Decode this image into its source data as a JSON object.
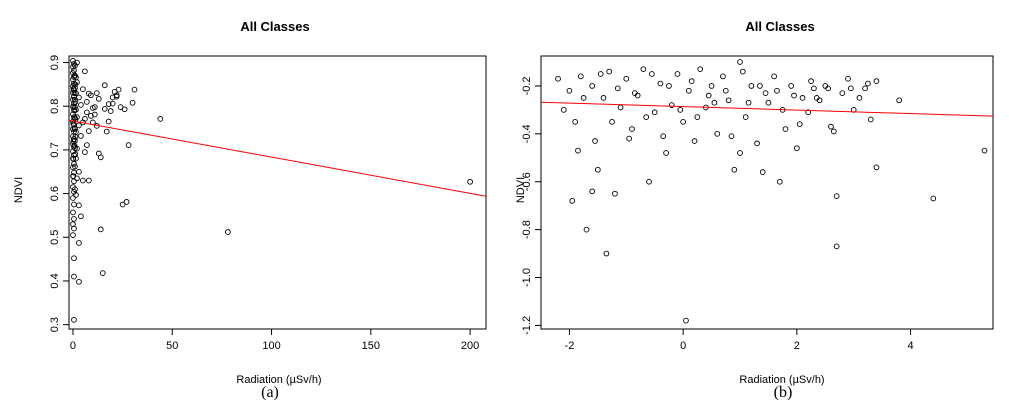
{
  "chart_data": [
    {
      "type": "scatter",
      "title": "All Classes",
      "xlabel": "Radiation (µSv/h)",
      "ylabel": "NDVI",
      "caption": "(a)",
      "xlim": [
        -2,
        208
      ],
      "ylim": [
        0.29,
        0.915
      ],
      "xticks": [
        0,
        50,
        100,
        150,
        200
      ],
      "xtick_labels": [
        "0",
        "50",
        "100",
        "150",
        "200"
      ],
      "yticks": [
        0.3,
        0.4,
        0.5,
        0.6,
        0.7,
        0.8,
        0.9
      ],
      "ytick_labels": [
        "0.3",
        "0.4",
        "0.5",
        "0.6",
        "0.7",
        "0.8",
        "0.9"
      ],
      "grid": false,
      "point_color": "#000000",
      "line_color": "#ff0000",
      "regression_line": {
        "x": [
          -2,
          208
        ],
        "y": [
          0.768,
          0.594
        ]
      },
      "points": [
        [
          200,
          0.627
        ],
        [
          78,
          0.512
        ],
        [
          44,
          0.771
        ],
        [
          31,
          0.838
        ],
        [
          30,
          0.808
        ],
        [
          28,
          0.711
        ],
        [
          27,
          0.581
        ],
        [
          26,
          0.793
        ],
        [
          25,
          0.575
        ],
        [
          24,
          0.798
        ],
        [
          23,
          0.838
        ],
        [
          22,
          0.825
        ],
        [
          22,
          0.822
        ],
        [
          21,
          0.833
        ],
        [
          20,
          0.82
        ],
        [
          19,
          0.789
        ],
        [
          18,
          0.765
        ],
        [
          18,
          0.805
        ],
        [
          17,
          0.742
        ],
        [
          16,
          0.794
        ],
        [
          16,
          0.848
        ],
        [
          15,
          0.418
        ],
        [
          14,
          0.518
        ],
        [
          14,
          0.683
        ],
        [
          13,
          0.817
        ],
        [
          13,
          0.692
        ],
        [
          12,
          0.83
        ],
        [
          11,
          0.781
        ],
        [
          10,
          0.763
        ],
        [
          10,
          0.796
        ],
        [
          9,
          0.825
        ],
        [
          8,
          0.829
        ],
        [
          8,
          0.743
        ],
        [
          7,
          0.711
        ],
        [
          7,
          0.786
        ],
        [
          6,
          0.771
        ],
        [
          6,
          0.88
        ],
        [
          5,
          0.63
        ],
        [
          5,
          0.763
        ],
        [
          5,
          0.839
        ],
        [
          4,
          0.548
        ],
        [
          4,
          0.803
        ],
        [
          4,
          0.732
        ],
        [
          3,
          0.398
        ],
        [
          3,
          0.487
        ],
        [
          3,
          0.573
        ],
        [
          3,
          0.65
        ],
        [
          3,
          0.756
        ],
        [
          3,
          0.82
        ],
        [
          2,
          0.635
        ],
        [
          2,
          0.703
        ],
        [
          2,
          0.775
        ],
        [
          2,
          0.855
        ],
        [
          2,
          0.9
        ],
        [
          1.5,
          0.597
        ],
        [
          1.5,
          0.68
        ],
        [
          1.5,
          0.741
        ],
        [
          1.5,
          0.792
        ],
        [
          1.5,
          0.83
        ],
        [
          1.5,
          0.866
        ],
        [
          1,
          0.61
        ],
        [
          1,
          0.662
        ],
        [
          1,
          0.704
        ],
        [
          1,
          0.721
        ],
        [
          1,
          0.748
        ],
        [
          1,
          0.773
        ],
        [
          1,
          0.798
        ],
        [
          1,
          0.815
        ],
        [
          1,
          0.842
        ],
        [
          1,
          0.87
        ],
        [
          1,
          0.893
        ],
        [
          0.5,
          0.311
        ],
        [
          0.5,
          0.452
        ],
        [
          0.5,
          0.41
        ],
        [
          0.5,
          0.52
        ],
        [
          0.5,
          0.542
        ],
        [
          0.5,
          0.575
        ],
        [
          0.5,
          0.604
        ],
        [
          0.5,
          0.628
        ],
        [
          0.5,
          0.648
        ],
        [
          0.5,
          0.668
        ],
        [
          0.5,
          0.688
        ],
        [
          0.5,
          0.707
        ],
        [
          0.5,
          0.725
        ],
        [
          0.5,
          0.742
        ],
        [
          0.5,
          0.758
        ],
        [
          0.5,
          0.775
        ],
        [
          0.5,
          0.791
        ],
        [
          0.5,
          0.806
        ],
        [
          0.5,
          0.822
        ],
        [
          0.5,
          0.837
        ],
        [
          0.5,
          0.852
        ],
        [
          0.5,
          0.867
        ],
        [
          0.5,
          0.882
        ],
        [
          0.5,
          0.897
        ],
        [
          0,
          0.505
        ],
        [
          0,
          0.53
        ],
        [
          0,
          0.557
        ],
        [
          0,
          0.59
        ],
        [
          0,
          0.615
        ],
        [
          0,
          0.64
        ],
        [
          0,
          0.66
        ],
        [
          0,
          0.68
        ],
        [
          0,
          0.697
        ],
        [
          0,
          0.714
        ],
        [
          0,
          0.731
        ],
        [
          0,
          0.748
        ],
        [
          0,
          0.765
        ],
        [
          0,
          0.782
        ],
        [
          0,
          0.799
        ],
        [
          0,
          0.815
        ],
        [
          0,
          0.831
        ],
        [
          0,
          0.846
        ],
        [
          0,
          0.861
        ],
        [
          0,
          0.876
        ],
        [
          0,
          0.89
        ],
        [
          0,
          0.904
        ],
        [
          0.2,
          0.72
        ],
        [
          0.2,
          0.76
        ],
        [
          0.2,
          0.8
        ],
        [
          0.2,
          0.84
        ],
        [
          0.2,
          0.68
        ],
        [
          0.2,
          0.64
        ],
        [
          0.8,
          0.71
        ],
        [
          0.8,
          0.75
        ],
        [
          0.8,
          0.79
        ],
        [
          0.8,
          0.83
        ],
        [
          0.8,
          0.87
        ],
        [
          1.2,
          0.69
        ],
        [
          1.2,
          0.73
        ],
        [
          1.2,
          0.77
        ],
        [
          1.2,
          0.81
        ],
        [
          1.2,
          0.85
        ],
        [
          6,
          0.695
        ],
        [
          7,
          0.81
        ],
        [
          9,
          0.778
        ],
        [
          11,
          0.798
        ],
        [
          12,
          0.755
        ],
        [
          20,
          0.806
        ],
        [
          8,
          0.63
        ]
      ]
    },
    {
      "type": "scatter",
      "title": "All Classes",
      "xlabel": "Radiation (µSv/h)",
      "ylabel": "NDVI",
      "caption": "(b)",
      "xlim": [
        -2.5,
        5.45
      ],
      "ylim": [
        -1.215,
        -0.075
      ],
      "xticks": [
        -2,
        0,
        2,
        4
      ],
      "xtick_labels": [
        "-2",
        "0",
        "2",
        "4"
      ],
      "yticks": [
        -1.2,
        -1.0,
        -0.8,
        -0.6,
        -0.4,
        -0.2
      ],
      "ytick_labels": [
        "-1.2",
        "-1.0",
        "-0.8",
        "-0.6",
        "-0.4",
        "-0.2"
      ],
      "grid": false,
      "point_color": "#000000",
      "line_color": "#ff0000",
      "regression_line": {
        "x": [
          -2.5,
          5.45
        ],
        "y": [
          -0.268,
          -0.326
        ]
      },
      "points": [
        [
          5.3,
          -0.47
        ],
        [
          4.4,
          -0.67
        ],
        [
          3.8,
          -0.26
        ],
        [
          3.4,
          -0.18
        ],
        [
          3.4,
          -0.54
        ],
        [
          3.3,
          -0.34
        ],
        [
          3.2,
          -0.21
        ],
        [
          3.1,
          -0.25
        ],
        [
          3.0,
          -0.3
        ],
        [
          2.9,
          -0.17
        ],
        [
          2.8,
          -0.23
        ],
        [
          2.7,
          -0.66
        ],
        [
          2.7,
          -0.87
        ],
        [
          2.6,
          -0.37
        ],
        [
          2.5,
          -0.2
        ],
        [
          2.4,
          -0.26
        ],
        [
          2.3,
          -0.21
        ],
        [
          2.2,
          -0.31
        ],
        [
          2.1,
          -0.25
        ],
        [
          2.0,
          -0.46
        ],
        [
          1.9,
          -0.2
        ],
        [
          1.8,
          -0.38
        ],
        [
          1.7,
          -0.6
        ],
        [
          1.6,
          -0.16
        ],
        [
          1.5,
          -0.27
        ],
        [
          1.4,
          -0.56
        ],
        [
          1.3,
          -0.44
        ],
        [
          1.2,
          -0.2
        ],
        [
          1.1,
          -0.33
        ],
        [
          1.0,
          -0.1
        ],
        [
          1.0,
          -0.48
        ],
        [
          0.9,
          -0.55
        ],
        [
          0.8,
          -0.26
        ],
        [
          0.7,
          -0.16
        ],
        [
          0.6,
          -0.4
        ],
        [
          0.5,
          -0.2
        ],
        [
          0.4,
          -0.29
        ],
        [
          0.3,
          -0.13
        ],
        [
          0.2,
          -0.43
        ],
        [
          0.1,
          -0.22
        ],
        [
          0.0,
          -0.35
        ],
        [
          0.05,
          -1.18
        ],
        [
          -0.1,
          -0.15
        ],
        [
          -0.2,
          -0.28
        ],
        [
          -0.3,
          -0.48
        ],
        [
          -0.4,
          -0.19
        ],
        [
          -0.5,
          -0.31
        ],
        [
          -0.6,
          -0.6
        ],
        [
          -0.7,
          -0.13
        ],
        [
          -0.8,
          -0.24
        ],
        [
          -0.9,
          -0.38
        ],
        [
          -1.0,
          -0.17
        ],
        [
          -1.1,
          -0.29
        ],
        [
          -1.2,
          -0.65
        ],
        [
          -1.3,
          -0.14
        ],
        [
          -1.35,
          -0.9
        ],
        [
          -1.4,
          -0.25
        ],
        [
          -1.5,
          -0.55
        ],
        [
          -1.6,
          -0.2
        ],
        [
          -1.6,
          -0.64
        ],
        [
          -1.7,
          -0.8
        ],
        [
          -1.8,
          -0.16
        ],
        [
          -1.9,
          -0.35
        ],
        [
          -2.0,
          -0.22
        ],
        [
          -2.1,
          -0.3
        ],
        [
          -2.2,
          -0.17
        ],
        [
          -1.95,
          -0.68
        ],
        [
          -1.55,
          -0.43
        ],
        [
          -1.25,
          -0.35
        ],
        [
          -0.95,
          -0.42
        ],
        [
          -0.65,
          -0.33
        ],
        [
          -0.35,
          -0.41
        ],
        [
          -0.05,
          -0.3
        ],
        [
          0.25,
          -0.33
        ],
        [
          0.55,
          -0.27
        ],
        [
          0.85,
          -0.41
        ],
        [
          1.15,
          -0.27
        ],
        [
          1.45,
          -0.23
        ],
        [
          1.75,
          -0.3
        ],
        [
          2.05,
          -0.36
        ],
        [
          2.35,
          -0.25
        ],
        [
          2.65,
          -0.39
        ],
        [
          2.95,
          -0.21
        ],
        [
          3.25,
          -0.19
        ],
        [
          -1.45,
          -0.15
        ],
        [
          -1.15,
          -0.21
        ],
        [
          -0.85,
          -0.23
        ],
        [
          -0.55,
          -0.15
        ],
        [
          -0.25,
          -0.2
        ],
        [
          0.15,
          -0.18
        ],
        [
          0.45,
          -0.24
        ],
        [
          0.75,
          -0.22
        ],
        [
          1.05,
          -0.14
        ],
        [
          1.35,
          -0.2
        ],
        [
          1.65,
          -0.22
        ],
        [
          1.95,
          -0.24
        ],
        [
          2.25,
          -0.18
        ],
        [
          2.55,
          -0.21
        ],
        [
          -1.75,
          -0.25
        ],
        [
          -1.85,
          -0.47
        ]
      ]
    }
  ]
}
